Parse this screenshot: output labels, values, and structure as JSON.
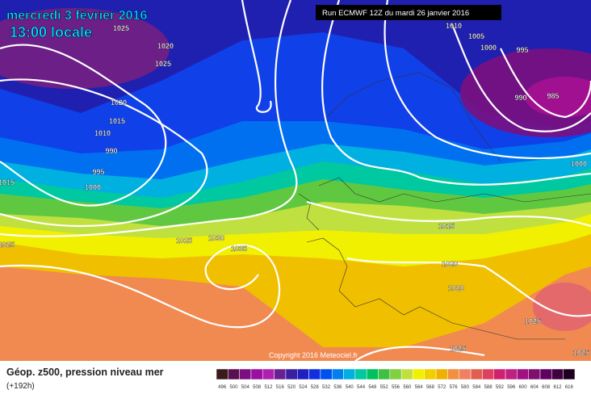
{
  "header": {
    "date": "mercredi 3 février 2016",
    "time": "13:00 locale",
    "run": "Run ECMWF 12Z du mardi 26 janvier 2016"
  },
  "isobar_labels": [
    1025,
    1020,
    1025,
    1020,
    1015,
    1010,
    990,
    995,
    1000,
    1015,
    1025,
    1025,
    1030,
    1035,
    1010,
    1005,
    1000,
    995,
    990,
    985,
    1000,
    1015,
    1020,
    1020,
    1025,
    1025,
    1025
  ],
  "copyright": "Copyright 2016 Meteociel.fr",
  "footer": {
    "title": "Géop. z500, pression niveau mer",
    "lead_time": "(+192h)"
  },
  "colorbar": {
    "labels": [
      496,
      500,
      504,
      508,
      512,
      516,
      520,
      524,
      528,
      532,
      536,
      540,
      544,
      548,
      552,
      556,
      560,
      564,
      568,
      572,
      576,
      580,
      584,
      588,
      592,
      596,
      600,
      604,
      608,
      612,
      616
    ],
    "colors": [
      "#3a1a1a",
      "#5a1050",
      "#7a1080",
      "#9a10a0",
      "#b020b0",
      "#6a2090",
      "#3a20a0",
      "#2020c0",
      "#1030e0",
      "#0050f0",
      "#0080f0",
      "#00b0e0",
      "#00c8a0",
      "#00c060",
      "#40c040",
      "#80d040",
      "#c0e040",
      "#f0f000",
      "#f0d000",
      "#f0b000",
      "#f09040",
      "#f08060",
      "#e06050",
      "#e04060",
      "#d02070",
      "#c02080",
      "#a01080",
      "#801070",
      "#600060",
      "#400040",
      "#200020"
    ]
  }
}
